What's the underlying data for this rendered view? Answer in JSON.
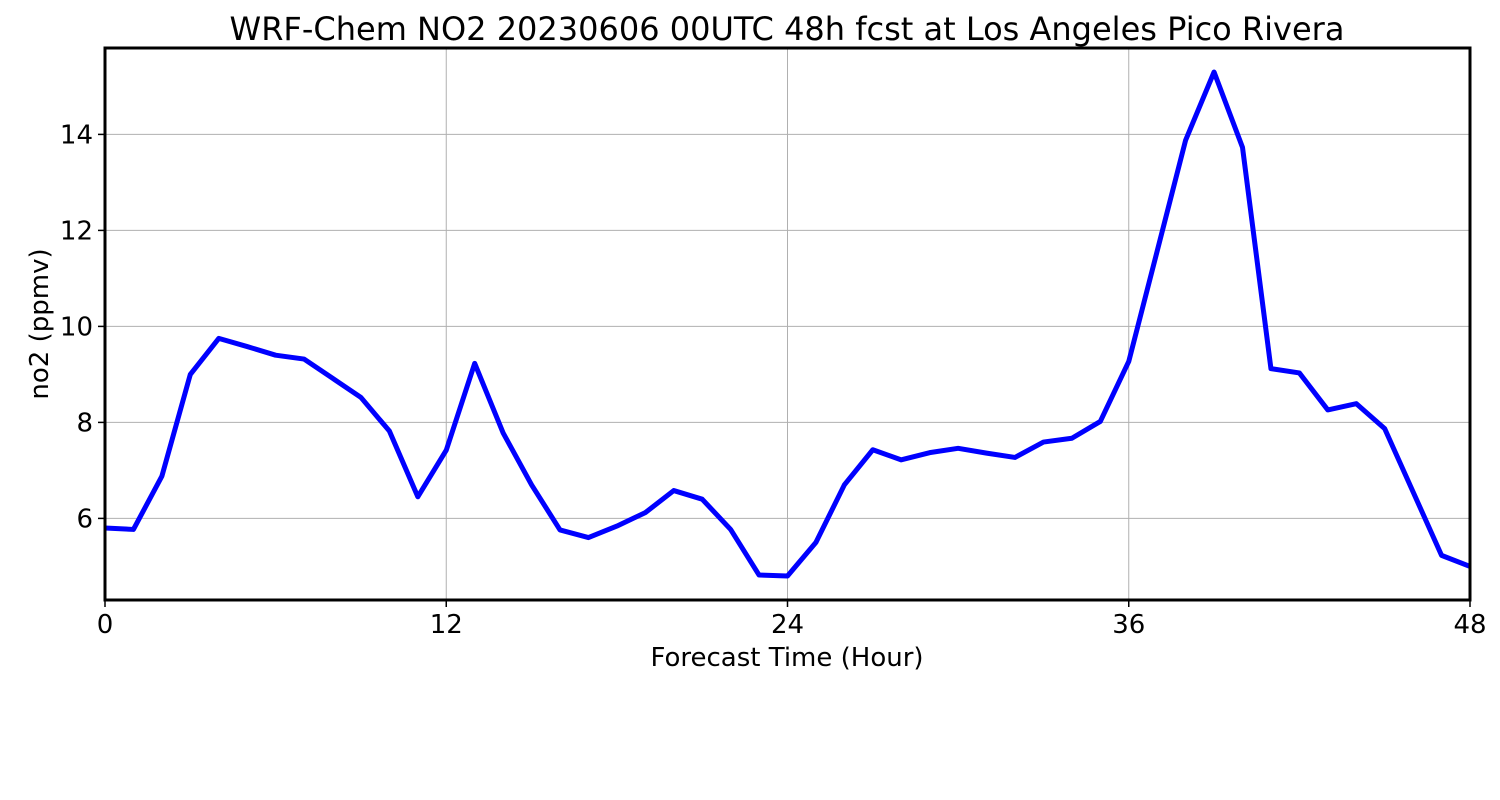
{
  "chart_data": {
    "type": "line",
    "title": "WRF-Chem NO2  20230606 00UTC 48h fcst at Los Angeles Pico Rivera",
    "xlabel": "Forecast Time (Hour)",
    "ylabel": "no2  (ppmv)",
    "xlim": [
      0,
      48
    ],
    "ylim": [
      4.3,
      15.8
    ],
    "xticks": [
      0,
      12,
      24,
      36,
      48
    ],
    "yticks": [
      6,
      8,
      10,
      12,
      14
    ],
    "xtick_labels": [
      "0",
      "12",
      "24",
      "36",
      "48"
    ],
    "ytick_labels": [
      "6",
      "8",
      "10",
      "12",
      "14"
    ],
    "grid": true,
    "legend": "none",
    "series": [
      {
        "color": "#0000ff",
        "x": [
          0,
          1,
          2,
          3,
          4,
          5,
          6,
          7,
          8,
          9,
          10,
          11,
          12,
          13,
          14,
          15,
          16,
          17,
          18,
          19,
          20,
          21,
          22,
          23,
          24,
          25,
          26,
          27,
          28,
          29,
          30,
          31,
          32,
          33,
          34,
          35,
          36,
          37,
          38,
          39,
          40,
          41,
          42,
          43,
          44,
          45,
          46,
          47,
          48
        ],
        "values": [
          5.8,
          5.77,
          6.88,
          9.0,
          9.75,
          9.58,
          9.4,
          9.32,
          8.92,
          8.52,
          7.82,
          6.45,
          7.42,
          9.23,
          7.78,
          6.7,
          5.76,
          5.6,
          5.84,
          6.12,
          6.58,
          6.4,
          5.77,
          4.82,
          4.8,
          5.5,
          6.7,
          7.43,
          7.22,
          7.37,
          7.46,
          7.36,
          7.27,
          7.59,
          7.67,
          8.02,
          9.27,
          11.57,
          13.88,
          15.3,
          13.73,
          9.12,
          9.03,
          8.26,
          8.39,
          7.87,
          6.55,
          5.23,
          5.0
        ]
      }
    ]
  }
}
